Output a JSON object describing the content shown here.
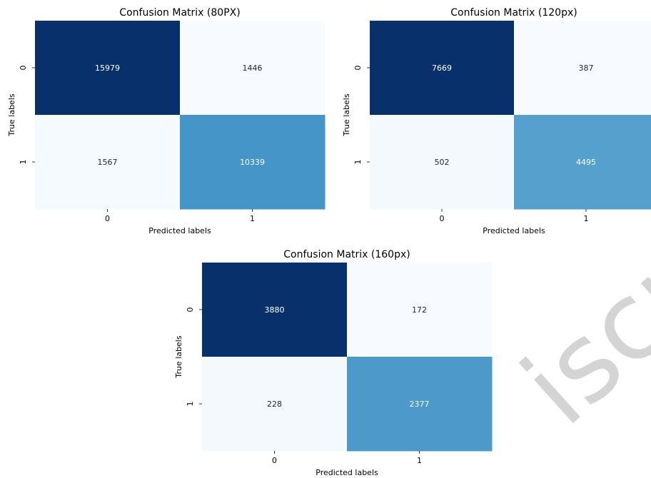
{
  "chart_data": [
    {
      "type": "heatmap",
      "title": "Confusion Matrix (80PX)",
      "xlabel": "Predicted labels",
      "ylabel": "True labels",
      "x_tick_labels": [
        "0",
        "1"
      ],
      "y_tick_labels": [
        "0",
        "1"
      ],
      "matrix": [
        [
          15979,
          1446
        ],
        [
          1567,
          10339
        ]
      ],
      "colormap": "Blues",
      "colorbar": false
    },
    {
      "type": "heatmap",
      "title": "Confusion Matrix (120px)",
      "xlabel": "Predicted labels",
      "ylabel": "True labels",
      "x_tick_labels": [
        "0",
        "1"
      ],
      "y_tick_labels": [
        "0",
        "1"
      ],
      "matrix": [
        [
          7669,
          387
        ],
        [
          502,
          4495
        ]
      ],
      "colormap": "Blues",
      "colorbar": false
    },
    {
      "type": "heatmap",
      "title": "Confusion Matrix (160px)",
      "xlabel": "Predicted labels",
      "ylabel": "True labels",
      "x_tick_labels": [
        "0",
        "1"
      ],
      "y_tick_labels": [
        "0",
        "1"
      ],
      "matrix": [
        [
          3880,
          172
        ],
        [
          228,
          2377
        ]
      ],
      "colormap": "Blues",
      "colorbar": false
    }
  ],
  "watermark": "iscri",
  "colors": {
    "blues_low": "#f7fbff",
    "blues_high": "#08306b",
    "watermark": "#d4d4d4"
  }
}
